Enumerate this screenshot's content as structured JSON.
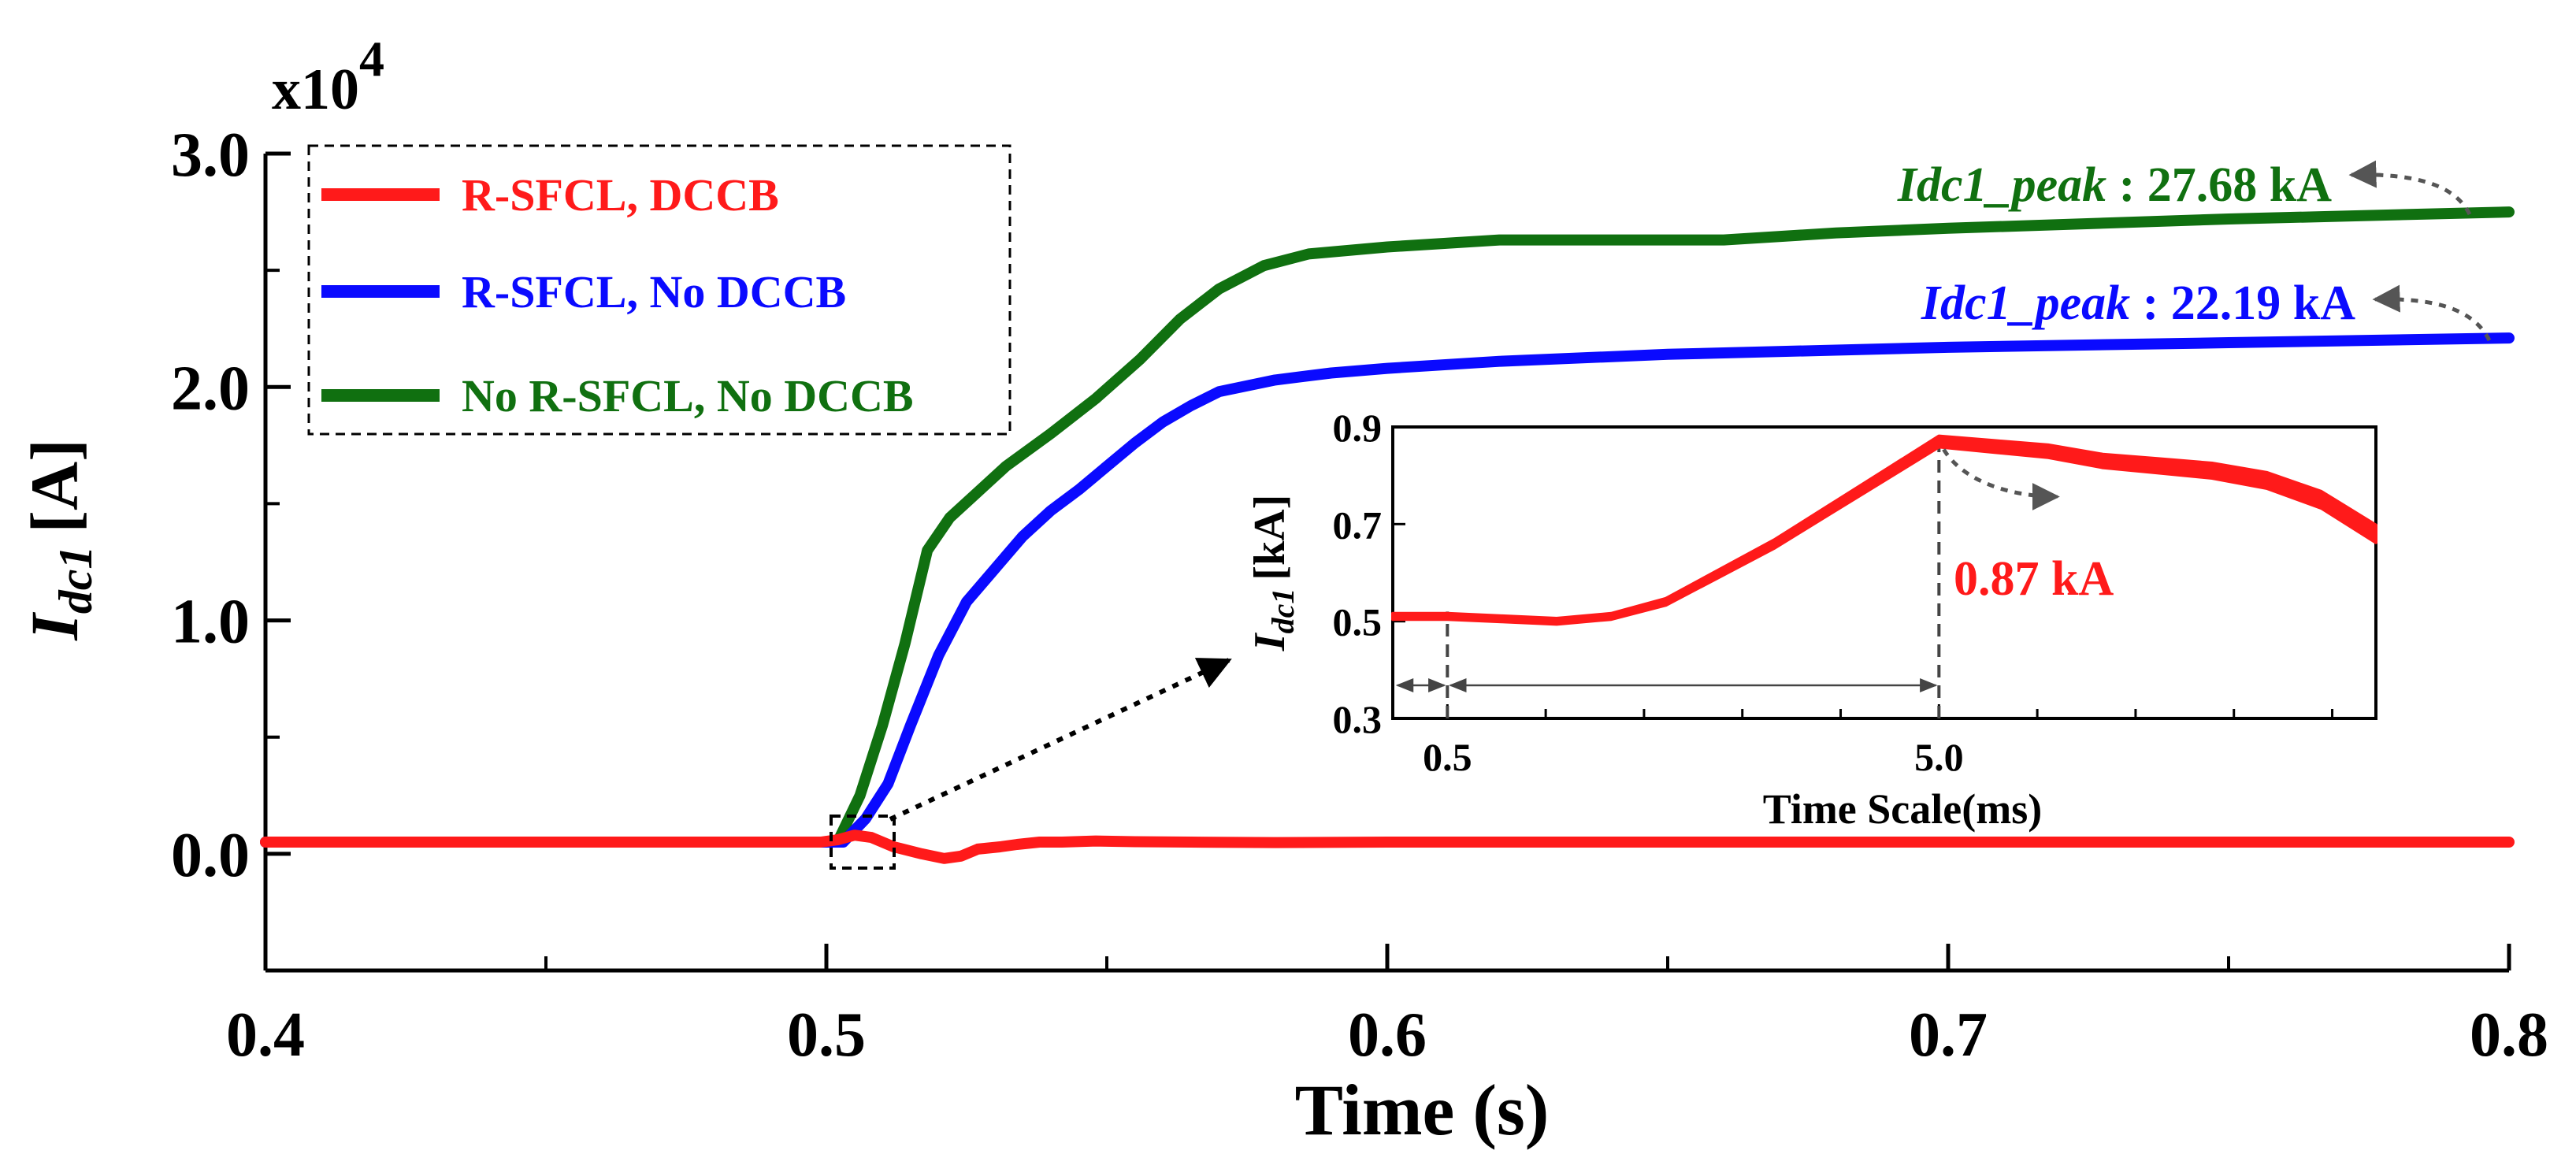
{
  "chart_data": {
    "type": "line",
    "multiplier_label": "x10",
    "multiplier_exponent": "4",
    "xlabel": "Time (s)",
    "ylabel": {
      "main": "I",
      "sub": "dc1",
      "unit": "[A]"
    },
    "xlim": [
      0.4,
      0.8
    ],
    "ylim": [
      -0.5,
      3.0
    ],
    "x_ticks": [
      {
        "value": 0.4,
        "label": "0.4"
      },
      {
        "value": 0.5,
        "label": "0.5"
      },
      {
        "value": 0.6,
        "label": "0.6"
      },
      {
        "value": 0.7,
        "label": "0.7"
      },
      {
        "value": 0.8,
        "label": "0.8"
      }
    ],
    "x_minor_ticks": [
      0.45,
      0.55,
      0.65,
      0.75
    ],
    "y_ticks": [
      {
        "value": 0.0,
        "label": "0.0"
      },
      {
        "value": 1.0,
        "label": "1.0"
      },
      {
        "value": 2.0,
        "label": "2.0"
      },
      {
        "value": 3.0,
        "label": "3.0"
      }
    ],
    "y_minor_ticks": [
      -0.5,
      0.5,
      1.5,
      2.5
    ],
    "series": [
      {
        "name": "R-SFCL, DCCB",
        "color": "#ff1a1a",
        "points": [
          [
            0.4,
            0.05
          ],
          [
            0.499,
            0.05
          ],
          [
            0.502,
            0.06
          ],
          [
            0.505,
            0.08
          ],
          [
            0.508,
            0.07
          ],
          [
            0.512,
            0.03
          ],
          [
            0.517,
            0.0
          ],
          [
            0.521,
            -0.02
          ],
          [
            0.524,
            -0.01
          ],
          [
            0.527,
            0.02
          ],
          [
            0.531,
            0.03
          ],
          [
            0.534,
            0.04
          ],
          [
            0.538,
            0.05
          ],
          [
            0.542,
            0.05
          ],
          [
            0.548,
            0.055
          ],
          [
            0.555,
            0.052
          ],
          [
            0.565,
            0.05
          ],
          [
            0.58,
            0.048
          ],
          [
            0.6,
            0.05
          ],
          [
            0.65,
            0.05
          ],
          [
            0.7,
            0.05
          ],
          [
            0.8,
            0.05
          ]
        ]
      },
      {
        "name": "R-SFCL, No DCCB",
        "color": "#0a0aff",
        "points": [
          [
            0.4,
            0.05
          ],
          [
            0.503,
            0.05
          ],
          [
            0.507,
            0.15
          ],
          [
            0.511,
            0.3
          ],
          [
            0.515,
            0.55
          ],
          [
            0.52,
            0.85
          ],
          [
            0.525,
            1.08
          ],
          [
            0.53,
            1.22
          ],
          [
            0.535,
            1.36
          ],
          [
            0.54,
            1.47
          ],
          [
            0.545,
            1.56
          ],
          [
            0.55,
            1.66
          ],
          [
            0.555,
            1.76
          ],
          [
            0.56,
            1.85
          ],
          [
            0.565,
            1.92
          ],
          [
            0.57,
            1.98
          ],
          [
            0.58,
            2.03
          ],
          [
            0.59,
            2.06
          ],
          [
            0.6,
            2.08
          ],
          [
            0.62,
            2.11
          ],
          [
            0.65,
            2.14
          ],
          [
            0.7,
            2.17
          ],
          [
            0.75,
            2.19
          ],
          [
            0.8,
            2.21
          ]
        ]
      },
      {
        "name": "No R-SFCL, No DCCB",
        "color": "#107010",
        "points": [
          [
            0.4,
            0.05
          ],
          [
            0.502,
            0.05
          ],
          [
            0.506,
            0.25
          ],
          [
            0.51,
            0.55
          ],
          [
            0.514,
            0.9
          ],
          [
            0.518,
            1.3
          ],
          [
            0.522,
            1.44
          ],
          [
            0.527,
            1.55
          ],
          [
            0.532,
            1.66
          ],
          [
            0.54,
            1.8
          ],
          [
            0.548,
            1.95
          ],
          [
            0.556,
            2.12
          ],
          [
            0.563,
            2.29
          ],
          [
            0.57,
            2.42
          ],
          [
            0.578,
            2.52
          ],
          [
            0.586,
            2.57
          ],
          [
            0.6,
            2.6
          ],
          [
            0.62,
            2.63
          ],
          [
            0.64,
            2.63
          ],
          [
            0.66,
            2.63
          ],
          [
            0.68,
            2.66
          ],
          [
            0.7,
            2.68
          ],
          [
            0.75,
            2.72
          ],
          [
            0.8,
            2.75
          ]
        ]
      }
    ],
    "annotations": [
      {
        "text_main": "Idc1_peak",
        "text_value": " : 27.68 kA",
        "color": "#107010"
      },
      {
        "text_main": "Idc1_peak",
        "text_value": " : 22.19 kA",
        "color": "#0a0aff"
      }
    ],
    "inset": {
      "xlabel": "Time Scale(ms)",
      "ylabel": {
        "main": "I",
        "sub": "dc1",
        "unit": "[kA]"
      },
      "x_ticks": [
        {
          "value": 0.5,
          "label": "0.5"
        },
        {
          "value": 5.0,
          "label": "5.0"
        }
      ],
      "xlim": [
        0.0,
        9.0
      ],
      "ylim": [
        0.3,
        0.9
      ],
      "y_ticks": [
        {
          "value": 0.3,
          "label": "0.3"
        },
        {
          "value": 0.5,
          "label": "0.5"
        },
        {
          "value": 0.7,
          "label": "0.7"
        },
        {
          "value": 0.9,
          "label": "0.9"
        }
      ],
      "peak_label": "0.87 kA",
      "peak": {
        "x": 5.0,
        "y": 0.87
      },
      "color": "#ff1a1a",
      "points": [
        [
          0.0,
          0.51
        ],
        [
          0.5,
          0.51
        ],
        [
          1.0,
          0.505
        ],
        [
          1.5,
          0.5
        ],
        [
          2.0,
          0.51
        ],
        [
          2.5,
          0.54
        ],
        [
          3.0,
          0.6
        ],
        [
          3.5,
          0.66
        ],
        [
          4.0,
          0.73
        ],
        [
          4.5,
          0.8
        ],
        [
          5.0,
          0.87
        ],
        [
          5.5,
          0.86
        ],
        [
          6.0,
          0.85
        ],
        [
          6.5,
          0.83
        ],
        [
          7.0,
          0.82
        ],
        [
          7.5,
          0.81
        ],
        [
          8.0,
          0.79
        ],
        [
          8.5,
          0.75
        ],
        [
          9.0,
          0.68
        ]
      ]
    }
  }
}
